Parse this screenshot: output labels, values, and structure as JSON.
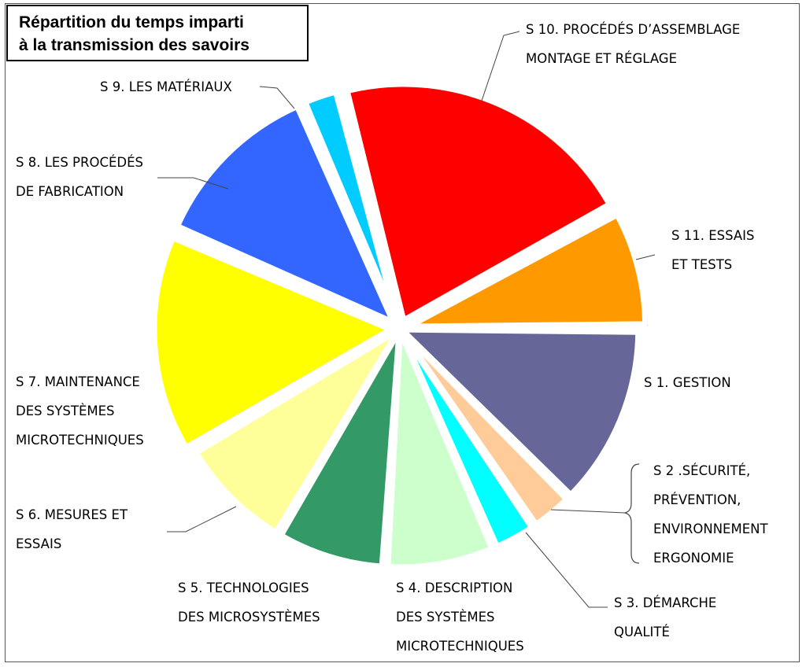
{
  "chart_data": {
    "type": "pie",
    "title": [
      "Répartition du temps imparti",
      "à la transmission des savoirs"
    ],
    "legend": "none",
    "slices": [
      {
        "label": [
          "S 1. GESTION"
        ],
        "value": 12.5,
        "color": "#666699",
        "exploded": false
      },
      {
        "label": [
          "S 2 .SÉCURITÉ,",
          "PRÉVENTION,",
          "ENVIRONNEMENT",
          "ERGONOMIE"
        ],
        "value": 3,
        "color": "#FFCC99",
        "exploded": false
      },
      {
        "label": [
          "S 3. DÉMARCHE",
          "QUALITÉ"
        ],
        "value": 3,
        "color": "#00FFFF",
        "exploded": false
      },
      {
        "label": [
          "S 4. DESCRIPTION",
          "DES SYSTÈMES",
          "MICROTECHNIQUES"
        ],
        "value": 7.5,
        "color": "#CCFFCC",
        "exploded": false
      },
      {
        "label": [
          "S 5. TECHNOLOGIES",
          "DES MICROSYSTÈMES"
        ],
        "value": 7.5,
        "color": "#339966",
        "exploded": false
      },
      {
        "label": [
          "S 6. MESURES ET",
          "ESSAIS"
        ],
        "value": 8,
        "color": "#FFFF99",
        "exploded": false
      },
      {
        "label": [
          "S 7. MAINTENANCE",
          "DES SYSTÈMES",
          "MICROTECHNIQUES"
        ],
        "value": 15,
        "color": "#FFFF00",
        "exploded": true
      },
      {
        "label": [
          "S 8. LES PROCÉDÉS",
          "DE FABRICATION"
        ],
        "value": 12,
        "color": "#3366FF",
        "exploded": true
      },
      {
        "label": [
          "S 9. LES MATÉRIAUX"
        ],
        "value": 2.5,
        "color": "#00CCFF",
        "exploded": true
      },
      {
        "label": [
          "S 10. PROCÉDÉS D’ASSEMBLAGE",
          "MONTAGE ET RÉGLAGE"
        ],
        "value": 21,
        "color": "#FF0000",
        "exploded": true
      },
      {
        "label": [
          "S 11. ESSAIS",
          "ET TESTS"
        ],
        "value": 8,
        "color": "#FF9900",
        "exploded": true
      }
    ]
  }
}
